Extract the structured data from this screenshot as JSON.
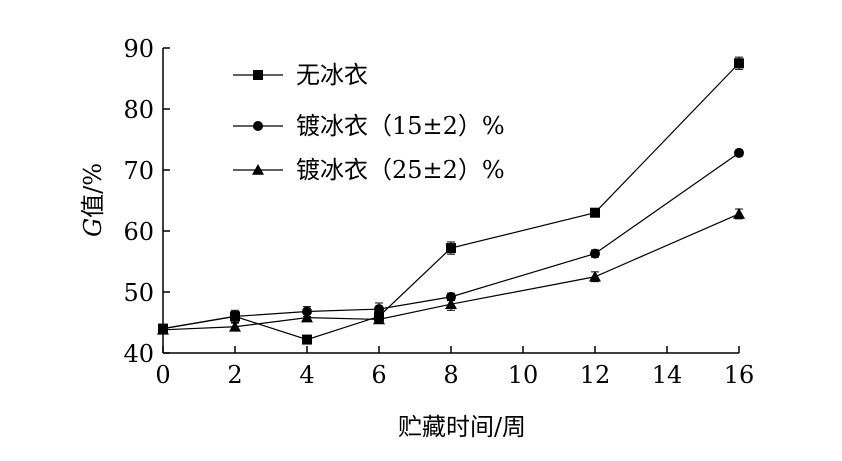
{
  "chart_data": {
    "type": "line",
    "xlabel": "贮藏时间/周",
    "ylabel_italic": "G",
    "ylabel_rest": "值/%",
    "x_ticks": [
      "0",
      "2",
      "4",
      "6",
      "8",
      "10",
      "12",
      "14",
      "16"
    ],
    "y_ticks": [
      "40",
      "50",
      "60",
      "70",
      "80",
      "90"
    ],
    "xlim": [
      0,
      16
    ],
    "ylim": [
      40,
      90
    ],
    "grid": false,
    "legend_position": "top-left",
    "series": [
      {
        "name": "无冰衣",
        "marker": "square",
        "x": [
          0,
          2,
          4,
          6,
          8,
          12,
          16
        ],
        "y": [
          44.0,
          46.0,
          42.2,
          46.0,
          57.2,
          63.0,
          87.5
        ],
        "err": [
          0.6,
          0.8,
          0.6,
          0.8,
          1.0,
          0.6,
          1.0
        ]
      },
      {
        "name": "镀冰衣（15±2）%",
        "marker": "circle",
        "x": [
          0,
          2,
          4,
          6,
          8,
          12,
          16
        ],
        "y": [
          44.0,
          46.0,
          46.8,
          47.2,
          49.2,
          56.3,
          72.8
        ],
        "err": [
          0.6,
          1.0,
          0.8,
          1.0,
          0.6,
          0.6,
          0.5
        ]
      },
      {
        "name": "镀冰衣（25±2）%",
        "marker": "triangle",
        "x": [
          0,
          2,
          4,
          6,
          8,
          12,
          16
        ],
        "y": [
          43.8,
          44.3,
          45.8,
          45.5,
          48.0,
          52.5,
          62.8
        ],
        "err": [
          0.6,
          0.6,
          0.6,
          0.6,
          1.0,
          0.8,
          0.8
        ]
      }
    ]
  }
}
